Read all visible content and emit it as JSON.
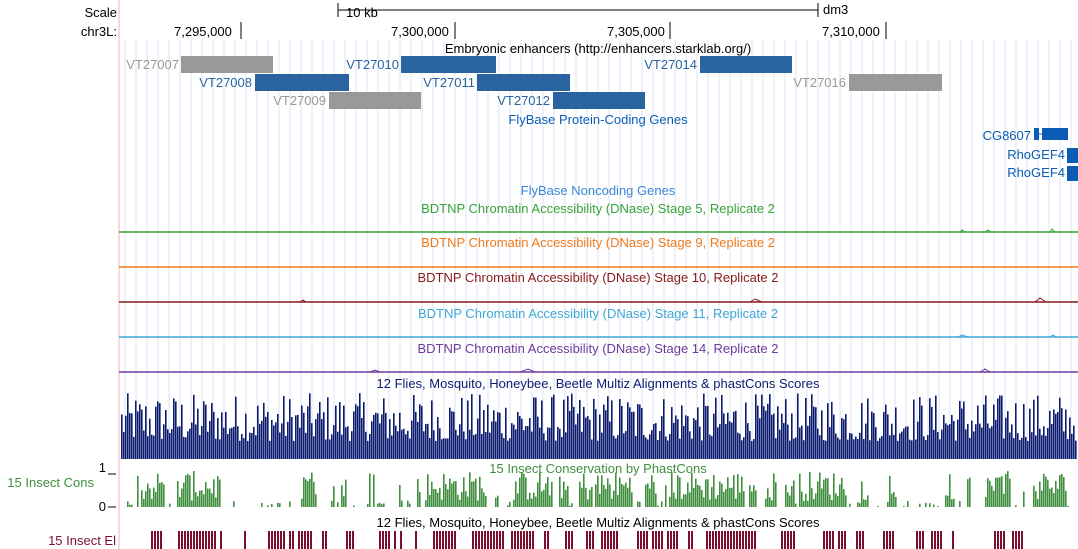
{
  "ruler": {
    "scale_label": "Scale",
    "chrom_label": "chr3L:",
    "scale_bar_label": "10 kb",
    "assembly": "dm3",
    "positions": [
      "7,295,000",
      "7,300,000",
      "7,305,000",
      "7,310,000"
    ]
  },
  "tracks": {
    "enhancers": {
      "title": "Embryonic enhancers (http://enhancers.starklab.org/)",
      "items": [
        {
          "name": "VT27007",
          "color": "#999999"
        },
        {
          "name": "VT27008",
          "color": "#2a64a0"
        },
        {
          "name": "VT27009",
          "color": "#999999"
        },
        {
          "name": "VT27010",
          "color": "#2a64a0"
        },
        {
          "name": "VT27011",
          "color": "#2a64a0"
        },
        {
          "name": "VT27012",
          "color": "#2a64a0"
        },
        {
          "name": "VT27014",
          "color": "#2a64a0"
        },
        {
          "name": "VT27016",
          "color": "#999999"
        }
      ]
    },
    "flybase_coding": {
      "title": "FlyBase Protein-Coding Genes",
      "genes": [
        "CG8607",
        "RhoGEF4",
        "RhoGEF4"
      ],
      "color": "#0c5bb5"
    },
    "flybase_noncoding": {
      "title": "FlyBase Noncoding Genes",
      "color": "#3a87d6"
    },
    "dnase": [
      {
        "title": "BDTNP Chromatin Accessibility (DNase) Stage 5, Replicate 2",
        "color": "#3aa23a"
      },
      {
        "title": "BDTNP Chromatin Accessibility (DNase) Stage 9, Replicate 2",
        "color": "#f07a1e"
      },
      {
        "title": "BDTNP Chromatin Accessibility (DNase) Stage 10, Replicate 2",
        "color": "#8b1a1a"
      },
      {
        "title": "BDTNP Chromatin Accessibility (DNase) Stage 11, Replicate 2",
        "color": "#3fa7d6"
      },
      {
        "title": "BDTNP Chromatin Accessibility (DNase) Stage 14, Replicate 2",
        "color": "#6e3a9e"
      }
    ],
    "multiz": {
      "title": "12 Flies, Mosquito, Honeybee, Beetle Multiz Alignments & phastCons Scores",
      "color": "#0c1a70"
    },
    "phastcons": {
      "title": "15 Insect Conservation by PhastCons",
      "side_label": "15 Insect Cons",
      "axis_max": "1",
      "axis_min": "0",
      "color": "#3f8f3f"
    },
    "elements": {
      "title": "12 Flies, Mosquito, Honeybee, Beetle Multiz Alignments & phastCons Scores",
      "side_label": "15 Insect El",
      "color": "#7a0f2e"
    }
  }
}
